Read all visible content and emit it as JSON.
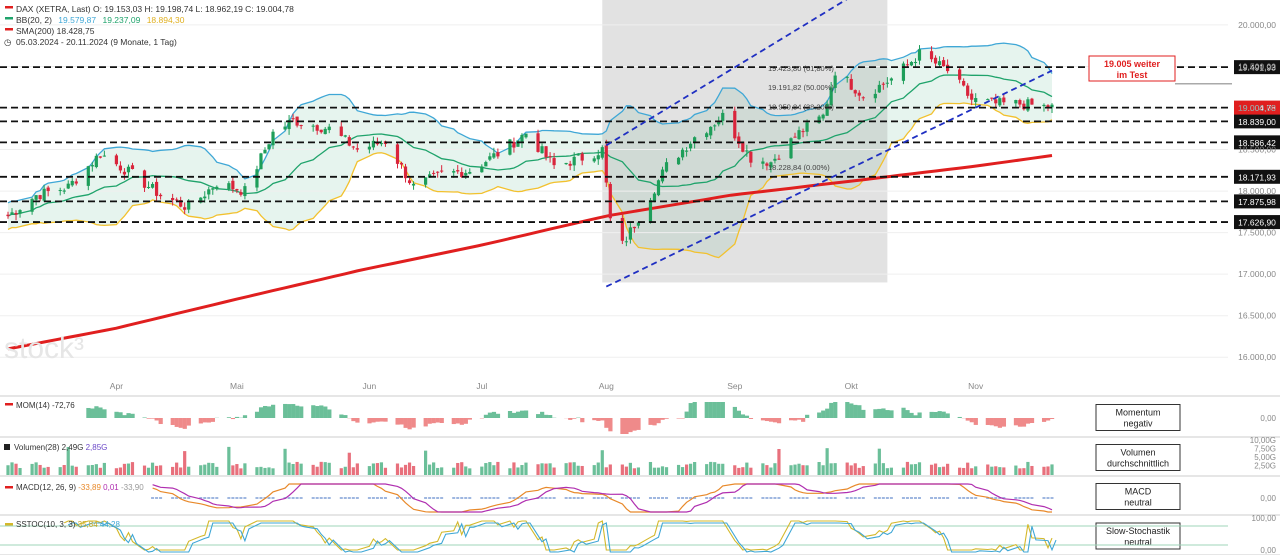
{
  "header": {
    "line1": "DAX (XETRA, Last)  O: 19.153,03  H: 19.198,74  L: 18.962,19  C: 19.004,78",
    "line2_prefix": "BB(20, 2)",
    "line2_upper": "19.579,87",
    "line2_mid": "19.237,09",
    "line2_lower": "18.894,30",
    "line3": "SMA(200)  18.428,75",
    "line4": "05.03.2024 - 20.11.2024  (9 Monate, 1 Tag)"
  },
  "colors": {
    "candle_up": "#1e9e5a",
    "candle_down": "#d9253c",
    "bb_upper": "#3fa7d6",
    "bb_mid": "#1fa36b",
    "bb_lower": "#f2c12e",
    "bb_fill": "#e3f3ec",
    "sma": "#e01f1f",
    "channel": "#1f2fc2",
    "shade": "#d6d6d6",
    "annotation": "#e01f1f"
  },
  "watermark": "stock³",
  "price_badge": "19.004,78",
  "annotation": {
    "line1": "19.005 weiter",
    "line2": "im Test"
  },
  "chart_data": {
    "type": "candlestick",
    "x_range": [
      "05.03.2024",
      "20.11.2024"
    ],
    "ylim": [
      15750,
      20300
    ],
    "y_ticks": [
      16000,
      16500,
      17000,
      17500,
      18000,
      18500,
      19000,
      19500,
      20000
    ],
    "y_tick_labels": [
      "16.000,00",
      "16.500,00",
      "17.000,00",
      "17.500,00",
      "18.000,00",
      "18.500,00",
      "19.000,00",
      "19.500,00",
      "20.000,00"
    ],
    "month_labels": [
      {
        "label": "Apr",
        "date": "2024-04-01"
      },
      {
        "label": "Mai",
        "date": "2024-05-01"
      },
      {
        "label": "Jun",
        "date": "2024-06-03"
      },
      {
        "label": "Jul",
        "date": "2024-07-01"
      },
      {
        "label": "Aug",
        "date": "2024-08-01"
      },
      {
        "label": "Sep",
        "date": "2024-09-02"
      },
      {
        "label": "Okt",
        "date": "2024-10-01"
      },
      {
        "label": "Nov",
        "date": "2024-11-01"
      }
    ],
    "close_path": [
      [
        "2024-03-05",
        17700
      ],
      [
        "2024-03-12",
        17950
      ],
      [
        "2024-03-20",
        18050
      ],
      [
        "2024-03-28",
        18450
      ],
      [
        "2024-04-05",
        18200
      ],
      [
        "2024-04-12",
        17950
      ],
      [
        "2024-04-19",
        17800
      ],
      [
        "2024-04-26",
        18100
      ],
      [
        "2024-05-03",
        18000
      ],
      [
        "2024-05-10",
        18700
      ],
      [
        "2024-05-15",
        18850
      ],
      [
        "2024-05-24",
        18750
      ],
      [
        "2024-05-31",
        18500
      ],
      [
        "2024-06-07",
        18600
      ],
      [
        "2024-06-14",
        18050
      ],
      [
        "2024-06-21",
        18200
      ],
      [
        "2024-06-28",
        18250
      ],
      [
        "2024-07-05",
        18450
      ],
      [
        "2024-07-12",
        18700
      ],
      [
        "2024-07-19",
        18300
      ],
      [
        "2024-07-26",
        18400
      ],
      [
        "2024-07-31",
        18500
      ],
      [
        "2024-08-02",
        17650
      ],
      [
        "2024-08-05",
        17350
      ],
      [
        "2024-08-08",
        17600
      ],
      [
        "2024-08-16",
        18300
      ],
      [
        "2024-08-23",
        18650
      ],
      [
        "2024-08-30",
        18900
      ],
      [
        "2024-09-06",
        18400
      ],
      [
        "2024-09-11",
        18350
      ],
      [
        "2024-09-18",
        18700
      ],
      [
        "2024-09-24",
        18900
      ],
      [
        "2024-09-27",
        19450
      ],
      [
        "2024-10-04",
        19150
      ],
      [
        "2024-10-11",
        19350
      ],
      [
        "2024-10-18",
        19650
      ],
      [
        "2024-10-25",
        19450
      ],
      [
        "2024-10-31",
        19100
      ],
      [
        "2024-11-06",
        19050
      ],
      [
        "2024-11-12",
        19050
      ],
      [
        "2024-11-20",
        19004.78
      ]
    ],
    "sma200": [
      [
        "2024-03-05",
        16100
      ],
      [
        "2024-04-01",
        16350
      ],
      [
        "2024-05-01",
        16700
      ],
      [
        "2024-06-01",
        17050
      ],
      [
        "2024-07-01",
        17350
      ],
      [
        "2024-08-01",
        17700
      ],
      [
        "2024-09-01",
        17950
      ],
      [
        "2024-10-01",
        18120
      ],
      [
        "2024-11-01",
        18300
      ],
      [
        "2024-11-20",
        18428.75
      ]
    ],
    "horizontal_levels": [
      {
        "value": 19491.93,
        "label": "19.491,93"
      },
      {
        "value": 18839.0,
        "label": "18.839,00"
      },
      {
        "value": 18586.42,
        "label": "18.586,42"
      },
      {
        "value": 18171.93,
        "label": "18.171,93"
      },
      {
        "value": 17875.98,
        "label": "17.875,98"
      },
      {
        "value": 17626.9,
        "label": "17.626,90"
      }
    ],
    "fib_labels": [
      {
        "value": 19423,
        "label": "19.423,80 (61,80%)"
      },
      {
        "value": 19191.82,
        "label": "19.191,82 (50.00%)"
      },
      {
        "value": 18959,
        "label": "18.959,84 (38.20%)"
      },
      {
        "value": 18228.84,
        "label": "18.228,84 (0.00%)"
      }
    ],
    "channel": {
      "lower": [
        [
          "2024-08-01",
          16850
        ],
        [
          "2024-11-20",
          19450
        ]
      ],
      "upper": [
        [
          "2024-08-01",
          18550
        ],
        [
          "2024-10-03",
          20400
        ]
      ]
    }
  },
  "panels": {
    "mom": {
      "label": "MOM(14)",
      "value": "-72,76",
      "axis": "0,00",
      "box": [
        "Momentum",
        "negativ"
      ]
    },
    "vol": {
      "label": "Volumen(28)",
      "v1": "2,49G",
      "v2": "2,85G",
      "axis": [
        "10,00G",
        "7,50G",
        "5,00G",
        "2,50G"
      ],
      "box": [
        "Volumen",
        "durchschnittlich"
      ]
    },
    "macd": {
      "label": "MACD(12, 26, 9)",
      "v1": "-33,89",
      "v2": "0,01",
      "v3": "-33,90",
      "axis": "0,00",
      "box": [
        "MACD",
        "neutral"
      ]
    },
    "sstoc": {
      "label": "SSTOC(10, 3, 3)",
      "v1": "35,84",
      "v2": "44,28",
      "axis": [
        "100,00",
        "0,00"
      ],
      "box": [
        "Slow-Stochastik",
        "neutral"
      ]
    }
  }
}
